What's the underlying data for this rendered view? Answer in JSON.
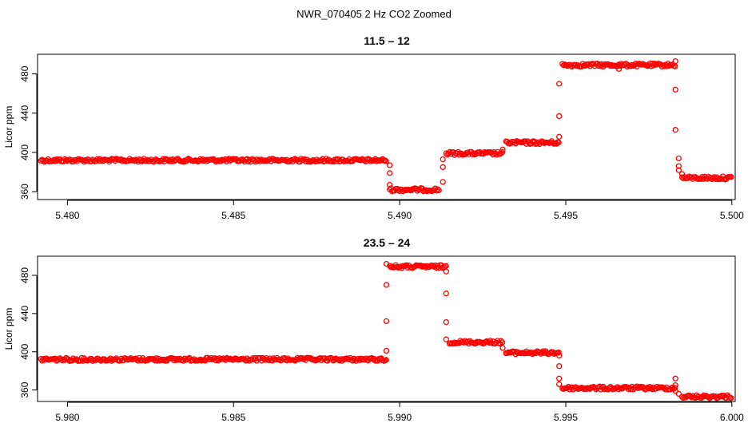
{
  "figure": {
    "title": "NWR_070405  2 Hz CO2 Zoomed"
  },
  "colors": {
    "points": "#ff0000",
    "axes": "#000000"
  },
  "chart_data": [
    {
      "type": "scatter",
      "title": "11.5 – 12",
      "xlabel": "",
      "ylabel": "Licor ppm",
      "xlim": [
        5.4791,
        5.5001
      ],
      "ylim": [
        352,
        500
      ],
      "x_ticks": [
        "5.480",
        "5.485",
        "5.490",
        "5.495",
        "5.500"
      ],
      "y_ticks": [
        "360",
        "400",
        "440",
        "480"
      ],
      "grid": false,
      "segments": [
        {
          "x_start": 5.4792,
          "x_end": 5.4896,
          "y": 392
        },
        {
          "x_start": 5.4897,
          "x_end": 5.4912,
          "y": 362
        },
        {
          "x_start": 5.4914,
          "x_end": 5.4931,
          "y": 399
        },
        {
          "x_start": 5.4932,
          "x_end": 5.4948,
          "y": 410
        },
        {
          "x_start": 5.4949,
          "x_end": 5.4983,
          "y": 489
        },
        {
          "x_start": 5.4985,
          "x_end": 5.5,
          "y": 374
        }
      ],
      "points": [
        {
          "x": 5.4897,
          "y": 367
        },
        {
          "x": 5.4897,
          "y": 379
        },
        {
          "x": 5.4897,
          "y": 387
        },
        {
          "x": 5.4913,
          "y": 370
        },
        {
          "x": 5.4913,
          "y": 385
        },
        {
          "x": 5.4913,
          "y": 393
        },
        {
          "x": 5.4931,
          "y": 403
        },
        {
          "x": 5.4948,
          "y": 416
        },
        {
          "x": 5.4948,
          "y": 437
        },
        {
          "x": 5.4948,
          "y": 470
        },
        {
          "x": 5.4966,
          "y": 485
        },
        {
          "x": 5.4983,
          "y": 493
        },
        {
          "x": 5.4983,
          "y": 464
        },
        {
          "x": 5.4983,
          "y": 423
        },
        {
          "x": 5.4984,
          "y": 394
        },
        {
          "x": 5.4984,
          "y": 386
        },
        {
          "x": 5.4984,
          "y": 382
        },
        {
          "x": 5.4985,
          "y": 378
        }
      ]
    },
    {
      "type": "scatter",
      "title": "23.5 – 24",
      "xlabel": "",
      "ylabel": "Licor ppm",
      "xlim": [
        5.9791,
        6.0001
      ],
      "ylim": [
        348,
        500
      ],
      "x_ticks": [
        "5.980",
        "5.985",
        "5.990",
        "5.995",
        "6.000"
      ],
      "y_ticks": [
        "360",
        "400",
        "440",
        "480"
      ],
      "grid": false,
      "segments": [
        {
          "x_start": 5.9792,
          "x_end": 5.9896,
          "y": 392
        },
        {
          "x_start": 5.9897,
          "x_end": 5.9914,
          "y": 489
        },
        {
          "x_start": 5.9915,
          "x_end": 5.9931,
          "y": 410
        },
        {
          "x_start": 5.9932,
          "x_end": 5.9948,
          "y": 399
        },
        {
          "x_start": 5.9949,
          "x_end": 5.9983,
          "y": 362
        },
        {
          "x_start": 5.9985,
          "x_end": 6.0,
          "y": 353
        }
      ],
      "points": [
        {
          "x": 5.9896,
          "y": 401
        },
        {
          "x": 5.9896,
          "y": 432
        },
        {
          "x": 5.9896,
          "y": 470
        },
        {
          "x": 5.9896,
          "y": 492
        },
        {
          "x": 5.9914,
          "y": 484
        },
        {
          "x": 5.9914,
          "y": 461
        },
        {
          "x": 5.9914,
          "y": 431
        },
        {
          "x": 5.9914,
          "y": 413
        },
        {
          "x": 5.9931,
          "y": 404
        },
        {
          "x": 5.9948,
          "y": 396
        },
        {
          "x": 5.9948,
          "y": 385
        },
        {
          "x": 5.9948,
          "y": 372
        },
        {
          "x": 5.9948,
          "y": 366
        },
        {
          "x": 5.9983,
          "y": 372
        },
        {
          "x": 5.9983,
          "y": 365
        },
        {
          "x": 5.9983,
          "y": 359
        },
        {
          "x": 5.9984,
          "y": 356
        }
      ]
    }
  ]
}
